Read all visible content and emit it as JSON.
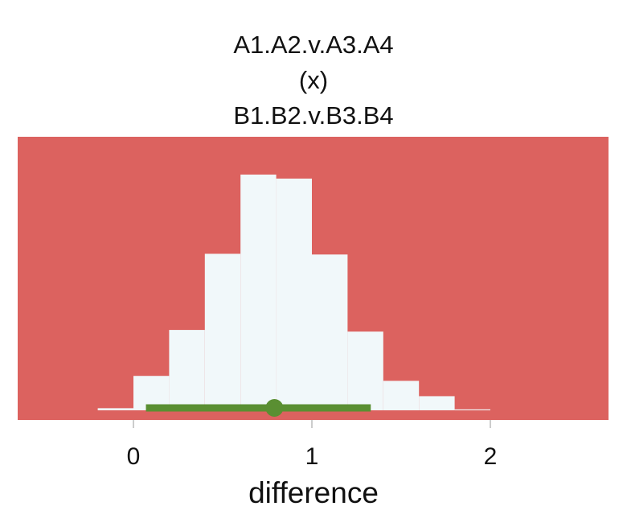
{
  "chart_data": {
    "type": "histogram",
    "title_lines": [
      "A1.A2.v.A3.A4",
      "(x)",
      "B1.B2.v.B3.B4"
    ],
    "xlabel": "difference",
    "ylabel": "",
    "xlim": [
      -0.65,
      2.65
    ],
    "x_ticks": [
      0,
      1,
      2
    ],
    "x_tick_labels": [
      "0",
      "1",
      "2"
    ],
    "bins": [
      {
        "x0": -0.2,
        "x1": 0.0,
        "density": 0.009
      },
      {
        "x0": 0.0,
        "x1": 0.2,
        "density": 0.146
      },
      {
        "x0": 0.2,
        "x1": 0.4,
        "density": 0.341
      },
      {
        "x0": 0.4,
        "x1": 0.6,
        "density": 0.664
      },
      {
        "x0": 0.6,
        "x1": 0.8,
        "density": 1.0
      },
      {
        "x0": 0.8,
        "x1": 1.0,
        "density": 0.983
      },
      {
        "x0": 1.0,
        "x1": 1.2,
        "density": 0.661
      },
      {
        "x0": 1.2,
        "x1": 1.4,
        "density": 0.334
      },
      {
        "x0": 1.4,
        "x1": 1.6,
        "density": 0.125
      },
      {
        "x0": 1.6,
        "x1": 1.8,
        "density": 0.06
      },
      {
        "x0": 1.8,
        "x1": 2.0,
        "density": 0.004
      }
    ],
    "point_estimate": 0.79,
    "interval": [
      0.07,
      1.33
    ],
    "grid": false,
    "colors": {
      "panel_background": "#dc625f",
      "histogram_fill": "#f1f8fa",
      "interval": "#5a8f32",
      "text": "#111111"
    }
  }
}
